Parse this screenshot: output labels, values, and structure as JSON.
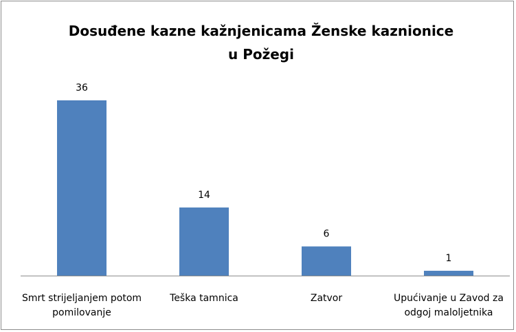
{
  "chart_data": {
    "type": "bar",
    "title": "Dosuđene kazne kažnjenicama Ženske kaznionice u Požegi",
    "categories": [
      "Smrt strijeljanjem potom pomilovanje",
      "Teška tamnica",
      "Zatvor",
      "Upućivanje u Zavod za odgoj maloljetnika"
    ],
    "values": [
      36,
      14,
      6,
      1
    ],
    "color": "#4f81bd"
  }
}
